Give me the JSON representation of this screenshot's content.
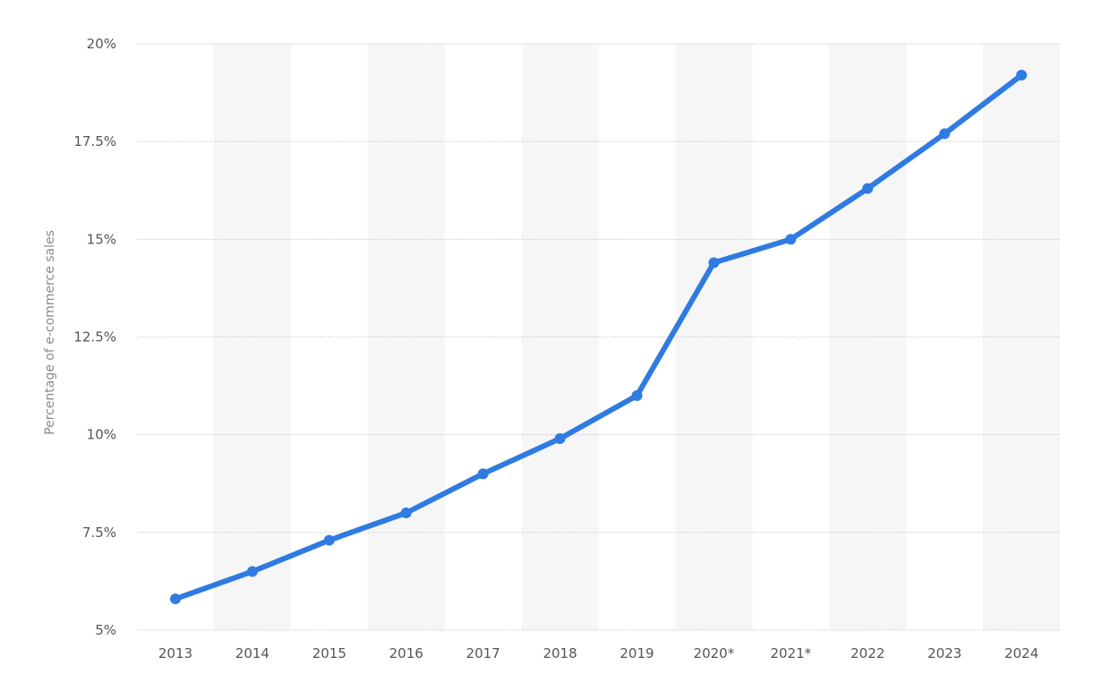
{
  "chart_data": {
    "type": "line",
    "title": "",
    "xlabel": "",
    "ylabel": "Percentage of e-commerce sales",
    "categories": [
      "2013",
      "2014",
      "2015",
      "2016",
      "2017",
      "2018",
      "2019",
      "2020*",
      "2021*",
      "2022",
      "2023",
      "2024"
    ],
    "series": [
      {
        "values": [
          5.8,
          6.5,
          7.3,
          8.0,
          9.0,
          9.9,
          11.0,
          14.4,
          15.0,
          16.3,
          17.7,
          19.2
        ],
        "color": "#2f7be2"
      }
    ],
    "ylim": [
      5,
      20
    ],
    "yticks": [
      5,
      7.5,
      10,
      12.5,
      15,
      17.5,
      20
    ],
    "ytick_labels": [
      "5%",
      "7.5%",
      "10%",
      "12.5%",
      "15%",
      "17.5%",
      "20%"
    ],
    "grid": true,
    "alternating_bands": true,
    "legend": false
  }
}
